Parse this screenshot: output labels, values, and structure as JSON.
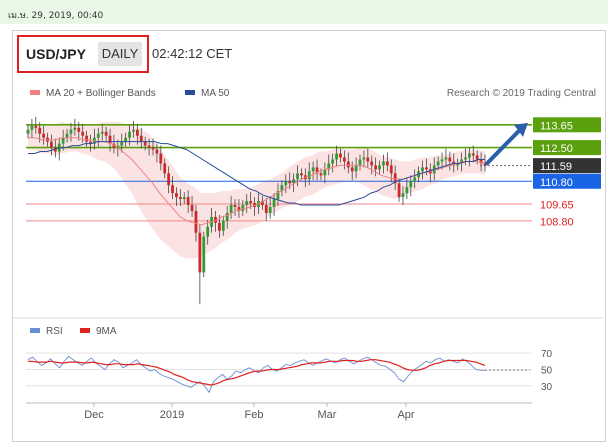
{
  "top": {
    "timestamp": "เม.ษ. 29, 2019, 00:40"
  },
  "header": {
    "pair": "USD/JPY",
    "timeframe": "DAILY",
    "time": "02:42:12 CET"
  },
  "legend": {
    "ma20": {
      "label": "MA 20 + Bollinger Bands",
      "color": "#f08080"
    },
    "ma50": {
      "label": "MA 50",
      "color": "#2a4d9b"
    },
    "credit": "Research © 2019 Trading Central"
  },
  "rsi_legend": {
    "rsi": {
      "label": "RSI",
      "color": "#6a8fd0"
    },
    "ma9": {
      "label": "9MA",
      "color": "#dd2222"
    }
  },
  "colors": {
    "green": "#5ba10d",
    "blue": "#1a64e6",
    "red": "#dd2222",
    "dark": "#333333",
    "up": "#339b33",
    "down": "#cc2a2a"
  },
  "chart_data": [
    {
      "type": "candlestick",
      "title": "USD/JPY DAILY",
      "x_ticks": [
        "Dec",
        "2019",
        "Feb",
        "Mar",
        "Apr"
      ],
      "ylim": [
        104.4,
        114.6
      ],
      "levels": [
        {
          "value": 113.65,
          "label": "113.65",
          "style": "green"
        },
        {
          "value": 112.5,
          "label": "112.50",
          "style": "green"
        },
        {
          "value": 111.59,
          "label": "111.59",
          "style": "dark"
        },
        {
          "value": 110.8,
          "label": "110.80",
          "style": "blue"
        },
        {
          "value": 109.65,
          "label": "109.65",
          "style": "red"
        },
        {
          "value": 108.8,
          "label": "108.80",
          "style": "red"
        }
      ],
      "forecast_arrow": {
        "from": 111.7,
        "to": 113.65
      },
      "closes": [
        113.4,
        113.6,
        113.5,
        113.2,
        113.0,
        112.8,
        112.5,
        112.3,
        112.7,
        113.0,
        113.2,
        113.4,
        113.5,
        113.3,
        113.1,
        112.8,
        112.7,
        113.0,
        113.2,
        113.3,
        113.1,
        112.7,
        112.5,
        112.6,
        112.8,
        113.0,
        113.3,
        113.4,
        113.1,
        112.8,
        112.6,
        112.5,
        112.4,
        112.2,
        111.7,
        111.2,
        110.6,
        110.2,
        110.0,
        109.9,
        110.0,
        109.6,
        109.3,
        108.2,
        106.2,
        108.0,
        108.5,
        109.0,
        108.7,
        108.3,
        108.8,
        109.2,
        109.6,
        109.5,
        109.3,
        109.6,
        109.8,
        109.7,
        109.5,
        109.8,
        109.6,
        109.2,
        109.5,
        109.9,
        110.3,
        110.6,
        110.8,
        110.7,
        110.9,
        111.2,
        111.1,
        110.9,
        111.3,
        111.5,
        111.2,
        111.1,
        111.4,
        111.7,
        111.9,
        112.2,
        112.0,
        111.8,
        111.5,
        111.3,
        111.6,
        111.9,
        112.0,
        111.8,
        111.6,
        111.4,
        111.6,
        111.8,
        111.6,
        111.2,
        110.7,
        110.0,
        110.2,
        110.5,
        110.8,
        111.0,
        111.3,
        111.5,
        111.4,
        111.2,
        111.6,
        111.8,
        111.9,
        112.0,
        111.8,
        111.6,
        111.7,
        111.9,
        112.0,
        112.2,
        112.1,
        111.9,
        111.7,
        111.59
      ],
      "ma50": [
        112.2,
        112.2,
        112.3,
        112.3,
        112.4,
        112.5,
        112.5,
        112.6,
        112.6,
        112.7,
        112.7,
        112.8,
        112.8,
        112.8,
        112.8,
        112.8,
        112.8,
        112.8,
        112.8,
        112.8,
        112.8,
        112.7,
        112.7,
        112.6,
        112.5,
        112.4,
        112.2,
        112.0,
        111.8,
        111.6,
        111.4,
        111.2,
        111.0,
        110.8,
        110.6,
        110.4,
        110.3,
        110.1,
        110.0,
        109.9,
        109.8,
        109.7,
        109.7,
        109.6,
        109.6,
        109.6,
        109.6,
        109.6,
        109.6,
        109.6,
        109.7,
        109.8,
        109.9,
        110.0,
        110.2,
        110.3,
        110.5,
        110.6,
        110.8,
        110.9,
        111.0,
        111.1,
        111.2,
        111.3,
        111.4,
        111.5,
        111.6,
        111.7,
        111.7,
        111.8,
        111.8,
        111.9,
        111.9
      ],
      "ma20": [
        113.0,
        113.0,
        112.9,
        112.9,
        112.9,
        113.0,
        113.0,
        113.0,
        112.9,
        112.9,
        112.8,
        112.8,
        112.7,
        112.5,
        112.2,
        111.9,
        111.5,
        111.1,
        110.7,
        110.2,
        109.8,
        109.4,
        109.0,
        108.8,
        108.7,
        108.6,
        108.7,
        108.8,
        109.0,
        109.1,
        109.3,
        109.4,
        109.5,
        109.6,
        109.8,
        110.0,
        110.2,
        110.4,
        110.6,
        110.8,
        111.0,
        111.1,
        111.3,
        111.4,
        111.5,
        111.6,
        111.6,
        111.6,
        111.6,
        111.5,
        111.3,
        111.1,
        111.0,
        110.9,
        110.9,
        111.0,
        111.1,
        111.2,
        111.3,
        111.4,
        111.5,
        111.6,
        111.7,
        111.8,
        111.8,
        111.8,
        111.7
      ],
      "bb_width": [
        0.6,
        0.6,
        0.7,
        0.7,
        0.8,
        0.8,
        0.7,
        0.7,
        0.7,
        0.8,
        0.9,
        1.0,
        1.1,
        1.3,
        1.5,
        1.7,
        2.0,
        2.2,
        2.3,
        2.3,
        2.2,
        2.1,
        2.0,
        1.9,
        1.8,
        1.6,
        1.5,
        1.4,
        1.3,
        1.2,
        1.1,
        1.0,
        1.0,
        1.0,
        1.0,
        0.9,
        0.9,
        0.9,
        1.0,
        1.0,
        1.0,
        1.0,
        1.0,
        0.9,
        0.9,
        0.9,
        0.8,
        0.8,
        0.9,
        1.0,
        1.0,
        1.0,
        1.0,
        1.0,
        0.9,
        0.8,
        0.8,
        0.8,
        0.7,
        0.7,
        0.6,
        0.6,
        0.6,
        0.6,
        0.6,
        0.6,
        0.6
      ]
    },
    {
      "type": "line",
      "title": "RSI",
      "ylim": [
        15,
        80
      ],
      "y_ticks": [
        30,
        50,
        70
      ],
      "series": [
        {
          "name": "RSI",
          "color": "#6a8fd0",
          "values": [
            62,
            65,
            60,
            55,
            58,
            63,
            57,
            52,
            60,
            66,
            62,
            58,
            55,
            60,
            64,
            58,
            54,
            50,
            57,
            62,
            59,
            52,
            55,
            58,
            62,
            56,
            52,
            48,
            50,
            45,
            42,
            40,
            38,
            35,
            32,
            30,
            28,
            32,
            35,
            30,
            22,
            35,
            40,
            44,
            38,
            42,
            48,
            46,
            50,
            52,
            48,
            46,
            52,
            55,
            50,
            48,
            52,
            56,
            55,
            58,
            60,
            62,
            58,
            55,
            58,
            61,
            63,
            60,
            58,
            62,
            64,
            60,
            57,
            60,
            63,
            65,
            62,
            58,
            55,
            54,
            50,
            46,
            38,
            35,
            42,
            48,
            52,
            56,
            60,
            58,
            62,
            64,
            60,
            62,
            60,
            58,
            63,
            60,
            55,
            50,
            49,
            49
          ]
        },
        {
          "name": "9MA",
          "color": "#dd2222",
          "values": [
            60,
            60,
            59,
            59,
            59,
            60,
            59,
            58,
            58,
            59,
            59,
            59,
            58,
            58,
            59,
            58,
            57,
            56,
            56,
            57,
            57,
            56,
            56,
            56,
            57,
            56,
            55,
            54,
            53,
            51,
            49,
            47,
            44,
            42,
            40,
            37,
            35,
            34,
            33,
            32,
            31,
            32,
            34,
            37,
            38,
            39,
            41,
            43,
            45,
            47,
            48,
            48,
            49,
            50,
            50,
            50,
            51,
            52,
            53,
            54,
            56,
            57,
            58,
            58,
            58,
            59,
            60,
            60,
            60,
            61,
            61,
            61,
            60,
            60,
            61,
            62,
            62,
            61,
            60,
            59,
            57,
            55,
            52,
            50,
            49,
            49,
            50,
            52,
            55,
            57,
            58,
            60,
            61,
            61,
            61,
            61,
            61,
            60,
            59,
            57,
            55
          ]
        }
      ]
    }
  ]
}
